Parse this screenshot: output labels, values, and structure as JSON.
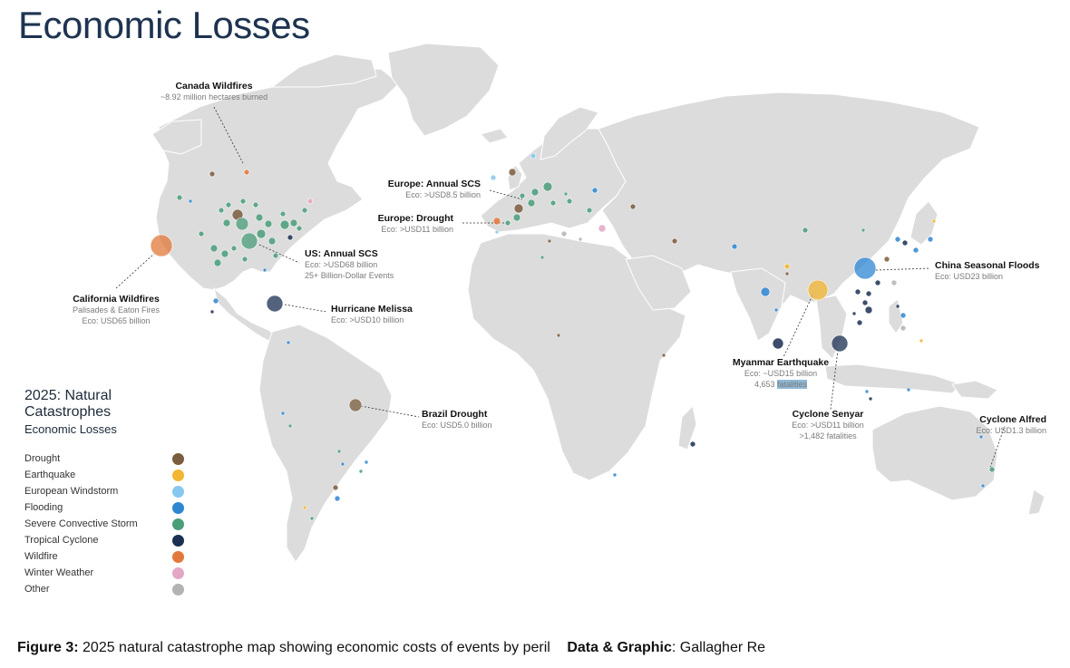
{
  "title": "Economic Losses",
  "legend": {
    "title": "2025: Natural Catastrophes",
    "subtitle": "Economic Losses",
    "items": [
      {
        "label": "Drought",
        "color": "#7a5c3e"
      },
      {
        "label": "Earthquake",
        "color": "#f2b632"
      },
      {
        "label": "European Windstorm",
        "color": "#86c8ef"
      },
      {
        "label": "Flooding",
        "color": "#2e86d1"
      },
      {
        "label": "Severe Convective Storm",
        "color": "#4a9e7a"
      },
      {
        "label": "Tropical Cyclone",
        "color": "#1b2f52"
      },
      {
        "label": "Wildfire",
        "color": "#e2783a"
      },
      {
        "label": "Winter Weather",
        "color": "#e3a7c6"
      },
      {
        "label": "Other",
        "color": "#b3b3b3"
      }
    ]
  },
  "annotations": {
    "canada": {
      "title": "Canada Wildfires",
      "lines": [
        "~8.92 million hectares burned"
      ]
    },
    "california": {
      "title": "California Wildfires",
      "lines": [
        "Palisades & Eaton Fires",
        "Eco: USD65 billion"
      ]
    },
    "us_scs": {
      "title": "US: Annual SCS",
      "lines": [
        "Eco: >USD68 billion",
        "25+ Billion-Dollar Events"
      ]
    },
    "melissa": {
      "title": "Hurricane Melissa",
      "lines": [
        "Eco: >USD10 billion"
      ]
    },
    "europe_scs": {
      "title": "Europe: Annual SCS",
      "lines": [
        "Eco: >USD8.5 billion"
      ]
    },
    "europe_drought": {
      "title": "Europe: Drought",
      "lines": [
        "Eco: >USD11 billion"
      ]
    },
    "brazil": {
      "title": "Brazil Drought",
      "lines": [
        "Eco: USD5.0 billion"
      ]
    },
    "china": {
      "title": "China Seasonal Floods",
      "lines": [
        "Eco: USD23 billion"
      ]
    },
    "myanmar": {
      "title": "Myanmar Earthquake",
      "lines": [
        "Eco: ~USD15 billion"
      ],
      "fatalities_prefix": "4,653 ",
      "fatalities_highlight": "fatalities"
    },
    "senyar": {
      "title": "Cyclone Senyar",
      "lines": [
        "Eco: >USD11 billion",
        ">1,482 fatalities"
      ]
    },
    "alfred": {
      "title": "Cyclone Alfred",
      "lines": [
        "Eco: USD1.3 billion"
      ]
    }
  },
  "caption": {
    "figure_label": "Figure 3:",
    "figure_text": "2025 natural catastrophe map showing economic costs of events by peril",
    "credit_label": "Data & Graphic",
    "credit_text": ": Gallagher Re"
  }
}
